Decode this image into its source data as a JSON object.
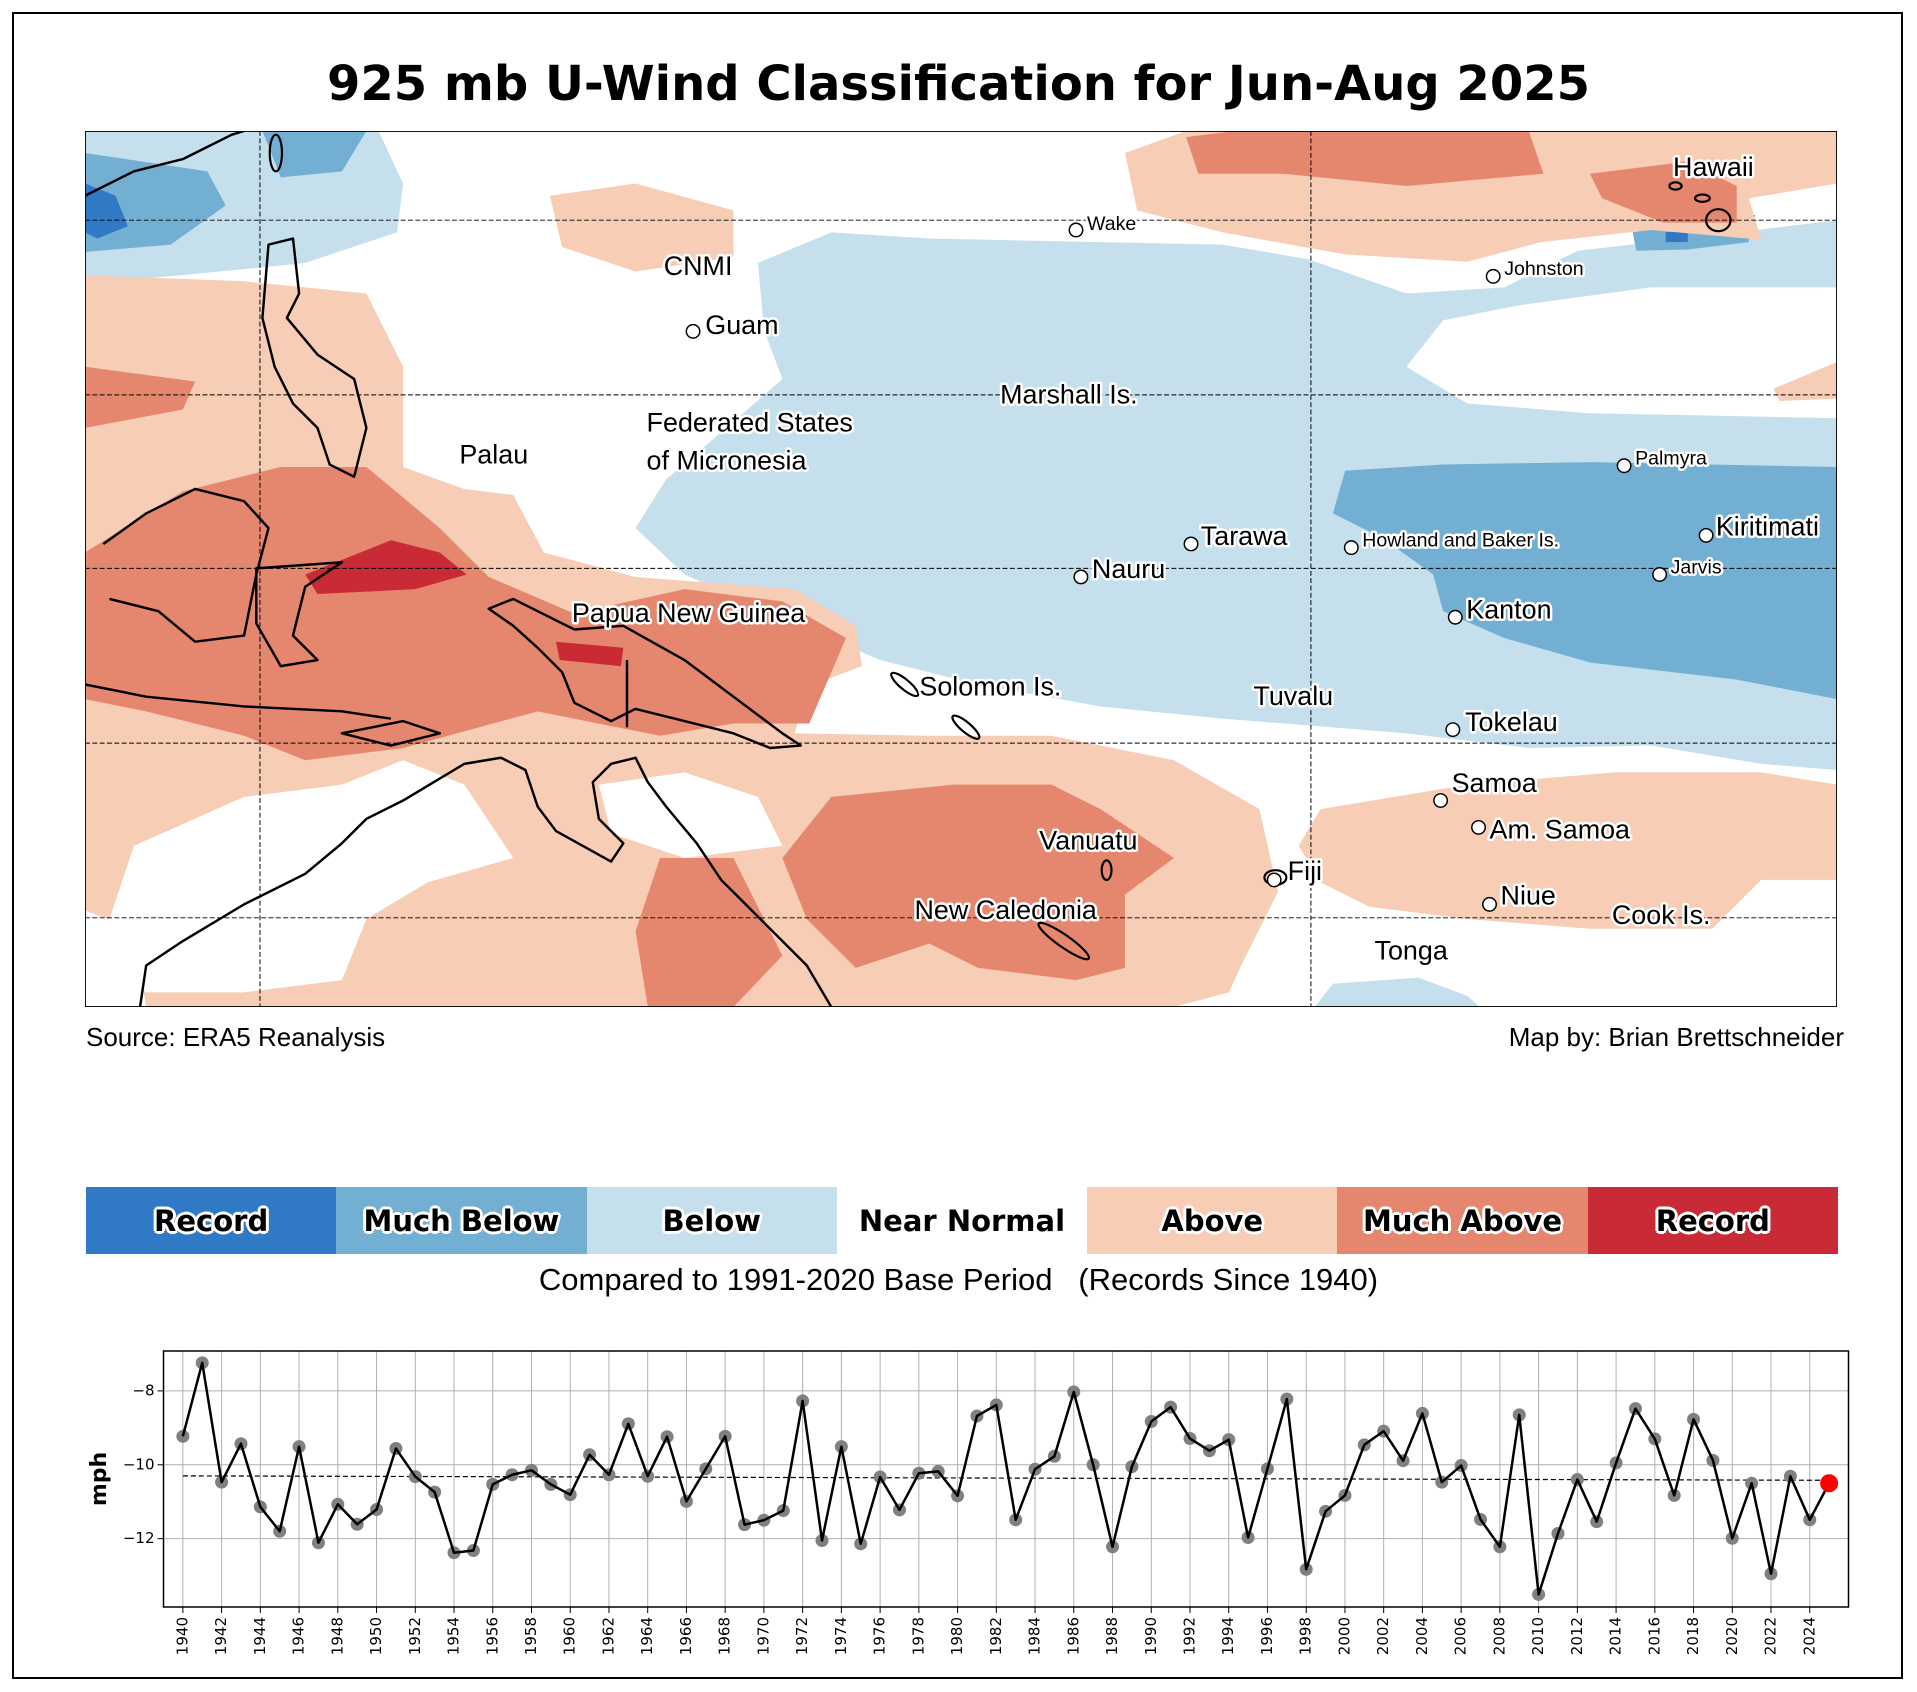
{
  "title": "925 mb U-Wind Classification for Jun-Aug 2025",
  "source": "Source: ERA5 Reanalysis",
  "credit": "Map by: Brian Brettschneider",
  "colors": {
    "record_low": "#2f79c5",
    "much_below": "#73afd3",
    "below": "#c6dfec",
    "near_normal": "#ffffff",
    "above": "#f7cdb5",
    "much_above": "#e5866e",
    "record_high": "#c82a36"
  },
  "legend": [
    {
      "label": "Record",
      "color": "#2f79c5"
    },
    {
      "label": "Much Below",
      "color": "#73afd3"
    },
    {
      "label": "Below",
      "color": "#c6dfec"
    },
    {
      "label": "Near Normal",
      "color": "#ffffff"
    },
    {
      "label": "Above",
      "color": "#f7cdb5"
    },
    {
      "label": "Much Above",
      "color": "#e5866e"
    },
    {
      "label": "Record",
      "color": "#c82a36"
    }
  ],
  "legend_caption": "Compared to 1991-2020 Base Period   (Records Since 1940)",
  "map_labels": {
    "wake": "Wake",
    "cnmi": "CNMI",
    "guam": "Guam",
    "marshall": "Marshall Is.",
    "palau": "Palau",
    "fsm_1": "Federated States",
    "fsm_2": "of Micronesia",
    "tarawa": "Tarawa",
    "nauru": "Nauru",
    "howland": "Howland and Baker Is.",
    "palmyra": "Palmyra",
    "kiritimati": "Kiritimati",
    "jarvis": "Jarvis",
    "kanton": "Kanton",
    "png": "Papua New Guinea",
    "solomon": "Solomon Is.",
    "tuvalu": "Tuvalu",
    "tokelau": "Tokelau",
    "samoa": "Samoa",
    "am_samoa": "Am. Samoa",
    "vanuatu": "Vanuatu",
    "fiji": "Fiji",
    "new_caledonia": "New Caledonia",
    "niue": "Niue",
    "cook": "Cook Is.",
    "tonga": "Tonga",
    "hawaii": "Hawaii",
    "johnston": "Johnston"
  },
  "chart_data": {
    "type": "line",
    "title": "",
    "xlabel": "",
    "ylabel": "mph",
    "xlim": [
      1939,
      2026
    ],
    "ylim": [
      -13.85,
      -6.92
    ],
    "yticks": [
      -8,
      -10,
      -12
    ],
    "ytick_labels": [
      "−8",
      "−10",
      "−12"
    ],
    "xticks": [
      1940,
      1942,
      1944,
      1946,
      1948,
      1950,
      1952,
      1954,
      1956,
      1958,
      1960,
      1962,
      1964,
      1966,
      1968,
      1970,
      1972,
      1974,
      1976,
      1978,
      1980,
      1982,
      1984,
      1986,
      1988,
      1990,
      1992,
      1994,
      1996,
      1998,
      2000,
      2002,
      2004,
      2006,
      2008,
      2010,
      2012,
      2014,
      2016,
      2018,
      2020,
      2022,
      2024
    ],
    "grid": true,
    "x_start": 1940,
    "values": [
      -9.23,
      -7.24,
      -10.47,
      -9.43,
      -11.14,
      -11.8,
      -9.51,
      -12.11,
      -11.07,
      -11.61,
      -11.21,
      -9.56,
      -10.32,
      -10.74,
      -12.38,
      -12.32,
      -10.53,
      -10.27,
      -10.15,
      -10.53,
      -10.81,
      -9.73,
      -10.27,
      -8.89,
      -10.31,
      -9.24,
      -10.99,
      -10.11,
      -9.23,
      -11.62,
      -11.5,
      -11.24,
      -8.27,
      -12.05,
      -9.51,
      -12.14,
      -10.33,
      -11.22,
      -10.23,
      -10.18,
      -10.84,
      -8.68,
      -8.38,
      -11.49,
      -10.12,
      -9.77,
      -8.03,
      -10.0,
      -12.22,
      -10.05,
      -8.83,
      -8.44,
      -9.29,
      -9.62,
      -9.32,
      -11.97,
      -10.11,
      -8.22,
      -12.83,
      -11.26,
      -10.83,
      -9.46,
      -9.09,
      -9.89,
      -8.61,
      -10.47,
      -10.02,
      -11.48,
      -12.22,
      -8.65,
      -13.51,
      -11.86,
      -10.4,
      -11.54,
      -9.95,
      -8.48,
      -9.3,
      -10.83,
      -8.77,
      -9.88,
      -11.99,
      -10.5,
      -12.95,
      -10.31,
      -11.49,
      -10.5
    ],
    "reference_line": {
      "x": [
        1940,
        2025
      ],
      "y": [
        -10.3,
        -10.42
      ],
      "style": "dashed"
    },
    "highlight": {
      "year": 2025,
      "color": "#ff0000"
    },
    "point_color": "#808080",
    "line_color": "#000000"
  }
}
